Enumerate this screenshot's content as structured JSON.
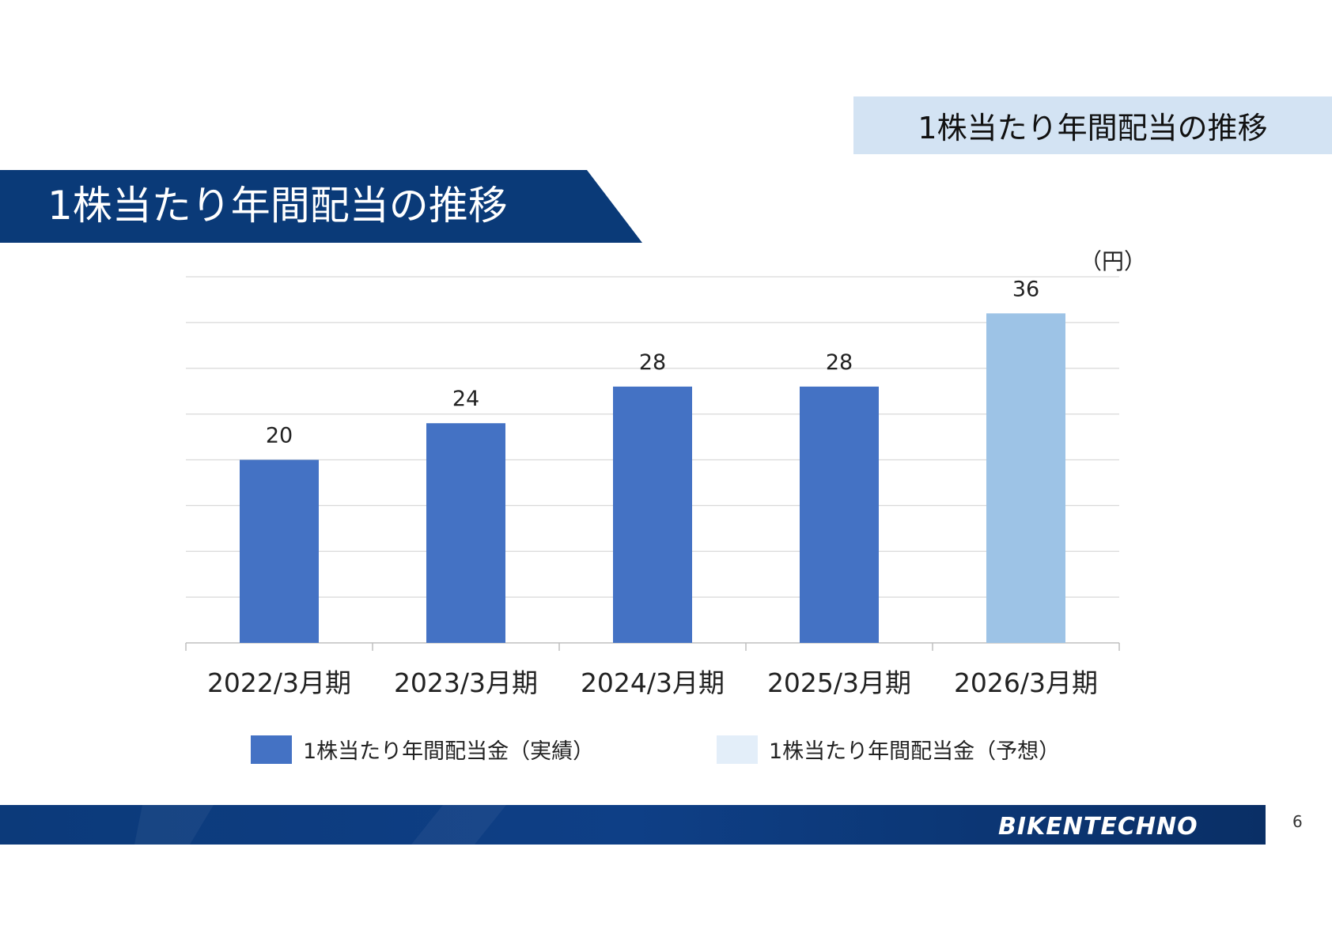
{
  "slide": {
    "tag_title": "1株当たり年間配当の推移",
    "banner_title": "1株当たり年間配当の推移",
    "page_number": "6",
    "logo_text": "BIKENTECHNO"
  },
  "colors": {
    "banner": "#0a3a78",
    "tag_bg": "#d3e3f3",
    "bar_actual": "#4472c4",
    "bar_forecast": "#9dc3e6",
    "legend_forecast": "#e3eef9",
    "footer": "#0c3a7a"
  },
  "chart_data": {
    "type": "bar",
    "unit_label": "（円）",
    "categories": [
      "2022/3月期",
      "2023/3月期",
      "2024/3月期",
      "2025/3月期",
      "2026/3月期"
    ],
    "values": [
      20,
      24,
      28,
      28,
      36
    ],
    "value_labels": [
      "20",
      "24",
      "28",
      "28",
      "36"
    ],
    "series_kind": [
      "actual",
      "actual",
      "actual",
      "actual",
      "forecast"
    ],
    "ylim": [
      0,
      40
    ],
    "grid": true,
    "legend": [
      {
        "label": "1株当たり年間配当金（実績）",
        "kind": "actual"
      },
      {
        "label": "1株当たり年間配当金（予想）",
        "kind": "forecast"
      }
    ],
    "legend_position": "bottom"
  }
}
